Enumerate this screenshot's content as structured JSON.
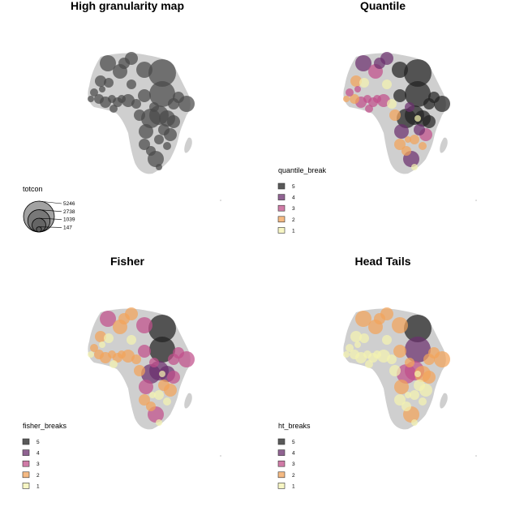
{
  "chart_data": [
    {
      "type": "map-bubble",
      "title": "High granularity map",
      "legend": {
        "title": "totcon",
        "kind": "size",
        "values": [
          5246,
          2738,
          1039,
          147
        ],
        "labels": [
          "5246",
          "2738",
          "1039",
          "147"
        ]
      },
      "color": "#4a4a4a"
    },
    {
      "type": "map-bubble",
      "title": "Quantile",
      "legend": {
        "title": "quantile_break",
        "kind": "class",
        "classes": [
          "5",
          "4",
          "3",
          "2",
          "1"
        ],
        "colors": [
          "#222222",
          "#6b2f6e",
          "#c04f8a",
          "#f2a35a",
          "#f4f3b0"
        ]
      }
    },
    {
      "type": "map-bubble",
      "title": "Fisher",
      "legend": {
        "title": "fisher_breaks",
        "kind": "class",
        "classes": [
          "5",
          "4",
          "3",
          "2",
          "1"
        ],
        "colors": [
          "#222222",
          "#6b2f6e",
          "#c04f8a",
          "#f2a35a",
          "#f4f3b0"
        ]
      }
    },
    {
      "type": "map-bubble",
      "title": "Head Tails",
      "legend": {
        "title": "ht_breaks",
        "kind": "class",
        "classes": [
          "5",
          "4",
          "3",
          "2",
          "1"
        ],
        "colors": [
          "#222222",
          "#6b2f6e",
          "#c04f8a",
          "#f2a35a",
          "#f4f3b0"
        ]
      }
    }
  ]
}
